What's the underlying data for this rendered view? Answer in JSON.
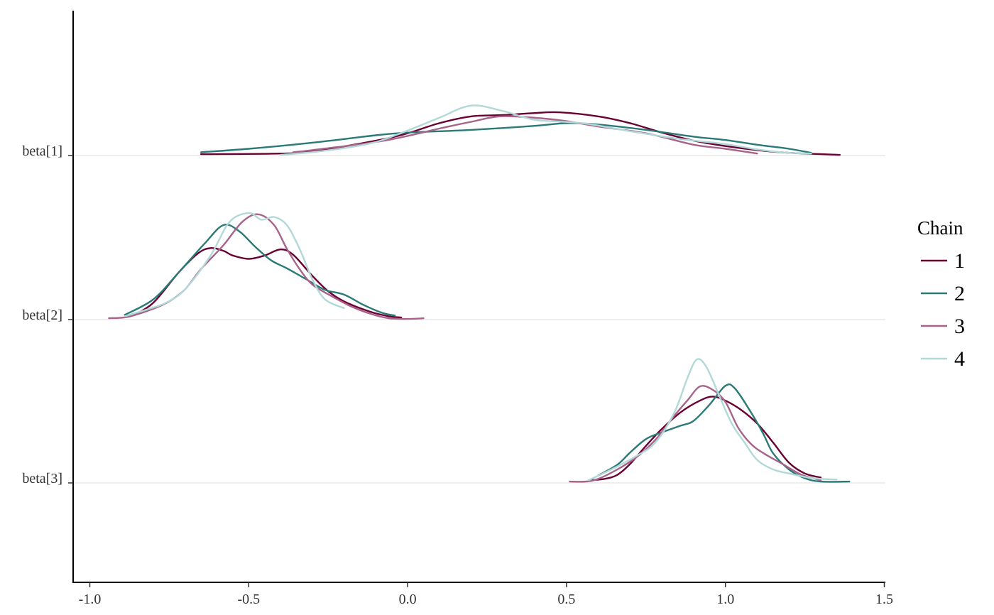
{
  "chart_data": {
    "type": "ridgeline",
    "x_ticks": [
      "-1.0",
      "-0.5",
      "0.0",
      "0.5",
      "1.0",
      "1.5"
    ],
    "x_tick_values": [
      -1.0,
      -0.5,
      0.0,
      0.5,
      1.0,
      1.5
    ],
    "xlim": [
      -1.06,
      1.5
    ],
    "y_categories": [
      "beta[1]",
      "beta[2]",
      "beta[3]"
    ],
    "grid": "horizontal lines at each parameter baseline",
    "legend": {
      "title": "Chain",
      "position": "right",
      "entries": [
        "1",
        "2",
        "3",
        "4"
      ]
    },
    "series": [
      {
        "name": "1",
        "color": "#6b0032",
        "densities": [
          {
            "parameter": "beta[1]",
            "points": [
              [
                -0.65,
                0.02
              ],
              [
                -0.4,
                0.03
              ],
              [
                -0.3,
                0.06
              ],
              [
                -0.1,
                0.22
              ],
              [
                0.0,
                0.33
              ],
              [
                0.1,
                0.48
              ],
              [
                0.2,
                0.58
              ],
              [
                0.3,
                0.6
              ],
              [
                0.4,
                0.63
              ],
              [
                0.48,
                0.64
              ],
              [
                0.6,
                0.58
              ],
              [
                0.7,
                0.48
              ],
              [
                0.8,
                0.34
              ],
              [
                0.9,
                0.22
              ],
              [
                1.0,
                0.14
              ],
              [
                1.1,
                0.08
              ],
              [
                1.2,
                0.04
              ],
              [
                1.36,
                0.01
              ]
            ]
          },
          {
            "parameter": "beta[2]",
            "points": [
              [
                -0.86,
                0.07
              ],
              [
                -0.8,
                0.25
              ],
              [
                -0.72,
                0.7
              ],
              [
                -0.66,
                0.98
              ],
              [
                -0.62,
                1.06
              ],
              [
                -0.58,
                1.02
              ],
              [
                -0.55,
                0.95
              ],
              [
                -0.5,
                0.9
              ],
              [
                -0.45,
                0.95
              ],
              [
                -0.4,
                1.04
              ],
              [
                -0.36,
                0.96
              ],
              [
                -0.3,
                0.65
              ],
              [
                -0.25,
                0.42
              ],
              [
                -0.2,
                0.27
              ],
              [
                -0.12,
                0.12
              ],
              [
                -0.06,
                0.05
              ],
              [
                -0.02,
                0.03
              ]
            ]
          },
          {
            "parameter": "beta[3]",
            "points": [
              [
                0.57,
                0.04
              ],
              [
                0.62,
                0.06
              ],
              [
                0.66,
                0.12
              ],
              [
                0.7,
                0.28
              ],
              [
                0.75,
                0.55
              ],
              [
                0.8,
                0.8
              ],
              [
                0.86,
                1.05
              ],
              [
                0.92,
                1.22
              ],
              [
                0.96,
                1.28
              ],
              [
                1.0,
                1.22
              ],
              [
                1.05,
                1.08
              ],
              [
                1.1,
                0.88
              ],
              [
                1.15,
                0.6
              ],
              [
                1.2,
                0.3
              ],
              [
                1.25,
                0.14
              ],
              [
                1.3,
                0.08
              ]
            ]
          }
        ]
      },
      {
        "name": "2",
        "color": "#2a7a78",
        "densities": [
          {
            "parameter": "beta[1]",
            "points": [
              [
                -0.65,
                0.05
              ],
              [
                -0.5,
                0.1
              ],
              [
                -0.3,
                0.19
              ],
              [
                -0.1,
                0.3
              ],
              [
                0.0,
                0.34
              ],
              [
                0.2,
                0.38
              ],
              [
                0.4,
                0.44
              ],
              [
                0.5,
                0.48
              ],
              [
                0.6,
                0.46
              ],
              [
                0.75,
                0.38
              ],
              [
                0.9,
                0.28
              ],
              [
                1.0,
                0.23
              ],
              [
                1.1,
                0.16
              ],
              [
                1.2,
                0.1
              ],
              [
                1.27,
                0.04
              ]
            ]
          },
          {
            "parameter": "beta[2]",
            "points": [
              [
                -0.89,
                0.07
              ],
              [
                -0.8,
                0.3
              ],
              [
                -0.72,
                0.7
              ],
              [
                -0.64,
                1.12
              ],
              [
                -0.58,
                1.4
              ],
              [
                -0.53,
                1.31
              ],
              [
                -0.48,
                1.08
              ],
              [
                -0.43,
                0.88
              ],
              [
                -0.38,
                0.76
              ],
              [
                -0.32,
                0.6
              ],
              [
                -0.26,
                0.44
              ],
              [
                -0.2,
                0.37
              ],
              [
                -0.14,
                0.22
              ],
              [
                -0.08,
                0.1
              ],
              [
                -0.04,
                0.06
              ]
            ]
          },
          {
            "parameter": "beta[3]",
            "points": [
              [
                0.6,
                0.11
              ],
              [
                0.66,
                0.27
              ],
              [
                0.7,
                0.45
              ],
              [
                0.75,
                0.65
              ],
              [
                0.8,
                0.75
              ],
              [
                0.86,
                0.85
              ],
              [
                0.9,
                0.92
              ],
              [
                0.95,
                1.16
              ],
              [
                1.0,
                1.44
              ],
              [
                1.03,
                1.4
              ],
              [
                1.08,
                1.05
              ],
              [
                1.12,
                0.72
              ],
              [
                1.15,
                0.44
              ],
              [
                1.2,
                0.2
              ],
              [
                1.25,
                0.07
              ],
              [
                1.3,
                0.02
              ],
              [
                1.39,
                0.02
              ]
            ]
          }
        ]
      },
      {
        "name": "3",
        "color": "#a8638a",
        "densities": [
          {
            "parameter": "beta[1]",
            "points": [
              [
                -0.36,
                0.05
              ],
              [
                -0.3,
                0.08
              ],
              [
                -0.1,
                0.2
              ],
              [
                0.0,
                0.29
              ],
              [
                0.1,
                0.4
              ],
              [
                0.2,
                0.5
              ],
              [
                0.29,
                0.58
              ],
              [
                0.4,
                0.56
              ],
              [
                0.5,
                0.51
              ],
              [
                0.6,
                0.43
              ],
              [
                0.75,
                0.33
              ],
              [
                0.9,
                0.16
              ],
              [
                1.0,
                0.1
              ],
              [
                1.1,
                0.03
              ]
            ]
          },
          {
            "parameter": "beta[2]",
            "points": [
              [
                -0.94,
                0.02
              ],
              [
                -0.88,
                0.04
              ],
              [
                -0.8,
                0.16
              ],
              [
                -0.75,
                0.27
              ],
              [
                -0.7,
                0.45
              ],
              [
                -0.65,
                0.75
              ],
              [
                -0.58,
                1.1
              ],
              [
                -0.52,
                1.45
              ],
              [
                -0.47,
                1.56
              ],
              [
                -0.42,
                1.4
              ],
              [
                -0.38,
                1.05
              ],
              [
                -0.34,
                0.75
              ],
              [
                -0.3,
                0.52
              ],
              [
                -0.24,
                0.35
              ],
              [
                -0.18,
                0.2
              ],
              [
                -0.12,
                0.09
              ],
              [
                -0.06,
                0.02
              ],
              [
                0.0,
                0.01
              ],
              [
                0.05,
                0.02
              ]
            ]
          },
          {
            "parameter": "beta[3]",
            "points": [
              [
                0.51,
                0.02
              ],
              [
                0.56,
                0.02
              ],
              [
                0.6,
                0.06
              ],
              [
                0.66,
                0.2
              ],
              [
                0.72,
                0.38
              ],
              [
                0.78,
                0.64
              ],
              [
                0.84,
                1.0
              ],
              [
                0.88,
                1.22
              ],
              [
                0.92,
                1.43
              ],
              [
                0.96,
                1.38
              ],
              [
                1.0,
                1.2
              ],
              [
                1.04,
                0.82
              ],
              [
                1.08,
                0.58
              ],
              [
                1.12,
                0.44
              ],
              [
                1.18,
                0.28
              ],
              [
                1.24,
                0.12
              ],
              [
                1.3,
                0.04
              ]
            ]
          }
        ]
      },
      {
        "name": "4",
        "color": "#b2d8d8",
        "densities": [
          {
            "parameter": "beta[1]",
            "points": [
              [
                -0.4,
                0.01
              ],
              [
                -0.3,
                0.05
              ],
              [
                -0.2,
                0.11
              ],
              [
                -0.1,
                0.2
              ],
              [
                0.0,
                0.37
              ],
              [
                0.1,
                0.56
              ],
              [
                0.2,
                0.74
              ],
              [
                0.3,
                0.66
              ],
              [
                0.4,
                0.53
              ],
              [
                0.55,
                0.48
              ],
              [
                0.7,
                0.36
              ],
              [
                0.85,
                0.25
              ],
              [
                1.0,
                0.17
              ],
              [
                1.1,
                0.09
              ],
              [
                1.2,
                0.04
              ],
              [
                1.27,
                0.03
              ]
            ]
          },
          {
            "parameter": "beta[2]",
            "points": [
              [
                -0.89,
                0.05
              ],
              [
                -0.82,
                0.15
              ],
              [
                -0.76,
                0.25
              ],
              [
                -0.7,
                0.45
              ],
              [
                -0.62,
                0.95
              ],
              [
                -0.56,
                1.45
              ],
              [
                -0.5,
                1.58
              ],
              [
                -0.46,
                1.48
              ],
              [
                -0.42,
                1.52
              ],
              [
                -0.38,
                1.4
              ],
              [
                -0.34,
                1.05
              ],
              [
                -0.3,
                0.6
              ],
              [
                -0.26,
                0.3
              ],
              [
                -0.2,
                0.17
              ]
            ]
          },
          {
            "parameter": "beta[3]",
            "points": [
              [
                0.57,
                0.04
              ],
              [
                0.65,
                0.22
              ],
              [
                0.72,
                0.4
              ],
              [
                0.78,
                0.6
              ],
              [
                0.84,
                1.05
              ],
              [
                0.88,
                1.55
              ],
              [
                0.91,
                1.83
              ],
              [
                0.94,
                1.72
              ],
              [
                0.98,
                1.3
              ],
              [
                1.02,
                0.88
              ],
              [
                1.06,
                0.6
              ],
              [
                1.1,
                0.34
              ],
              [
                1.15,
                0.2
              ],
              [
                1.2,
                0.14
              ],
              [
                1.26,
                0.08
              ],
              [
                1.3,
                0.06
              ],
              [
                1.35,
                0.05
              ]
            ]
          }
        ]
      }
    ]
  }
}
